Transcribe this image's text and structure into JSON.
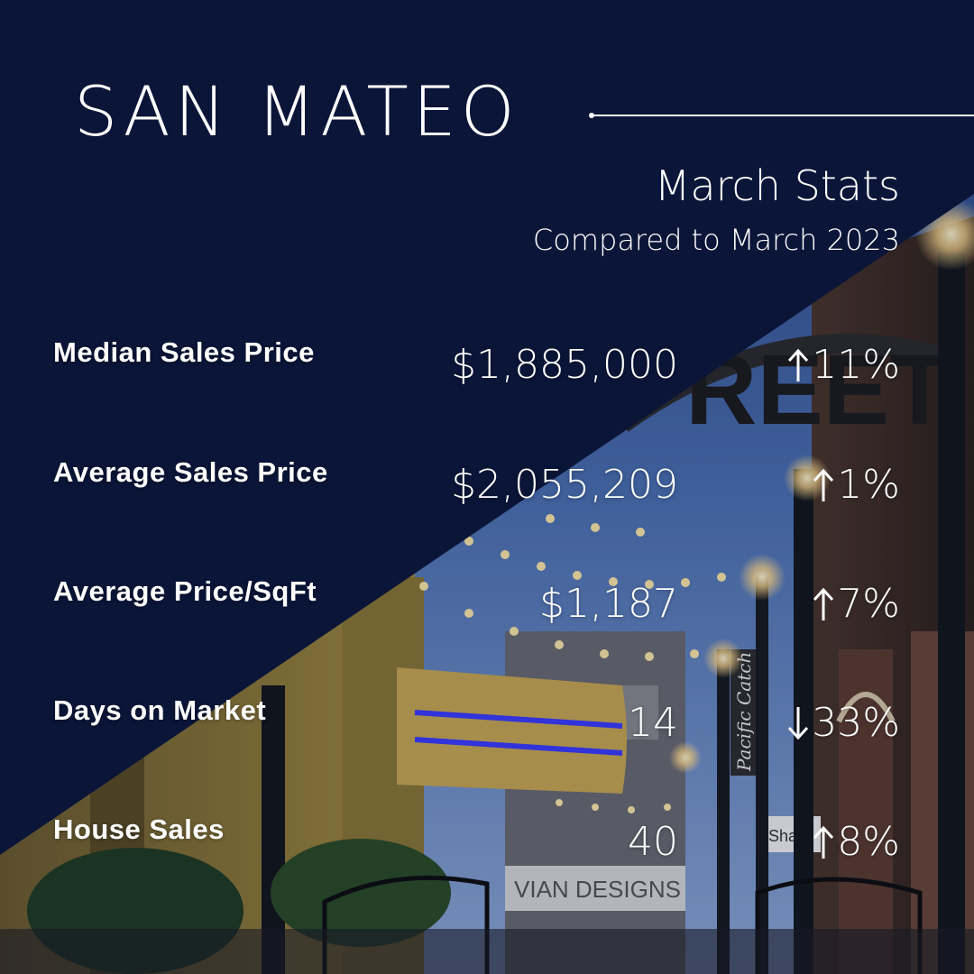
{
  "header": {
    "city": "SAN MATEO",
    "subtitle": "March Stats",
    "comparison": "Compared to March 2023"
  },
  "stats": [
    {
      "label": "Median Sales Price",
      "value": "$1,885,000",
      "direction": "up",
      "icon": "arrow-up-icon",
      "change": "11%"
    },
    {
      "label": "Average Sales Price",
      "value": "$2,055,209",
      "direction": "up",
      "icon": "arrow-up-icon",
      "change": "1%"
    },
    {
      "label": "Average Price/SqFt",
      "value": "$1,187",
      "direction": "up",
      "icon": "arrow-up-icon",
      "change": "7%"
    },
    {
      "label": "Days on Market",
      "value": "14",
      "direction": "down",
      "icon": "arrow-down-icon",
      "change": "33%"
    },
    {
      "label": "House Sales",
      "value": "40",
      "direction": "up",
      "icon": "arrow-up-icon",
      "change": "8%"
    }
  ],
  "background": {
    "sign_text": "REET",
    "storefront_text": "VIAN DESIGNS",
    "vertical_sign_text": "Pacific Catch",
    "shop_sign_text": "Shar"
  },
  "colors": {
    "navy": "#0a1538",
    "text": "#ffffff",
    "sky": "#3b5a9a",
    "light_glow": "#ffd98a"
  }
}
